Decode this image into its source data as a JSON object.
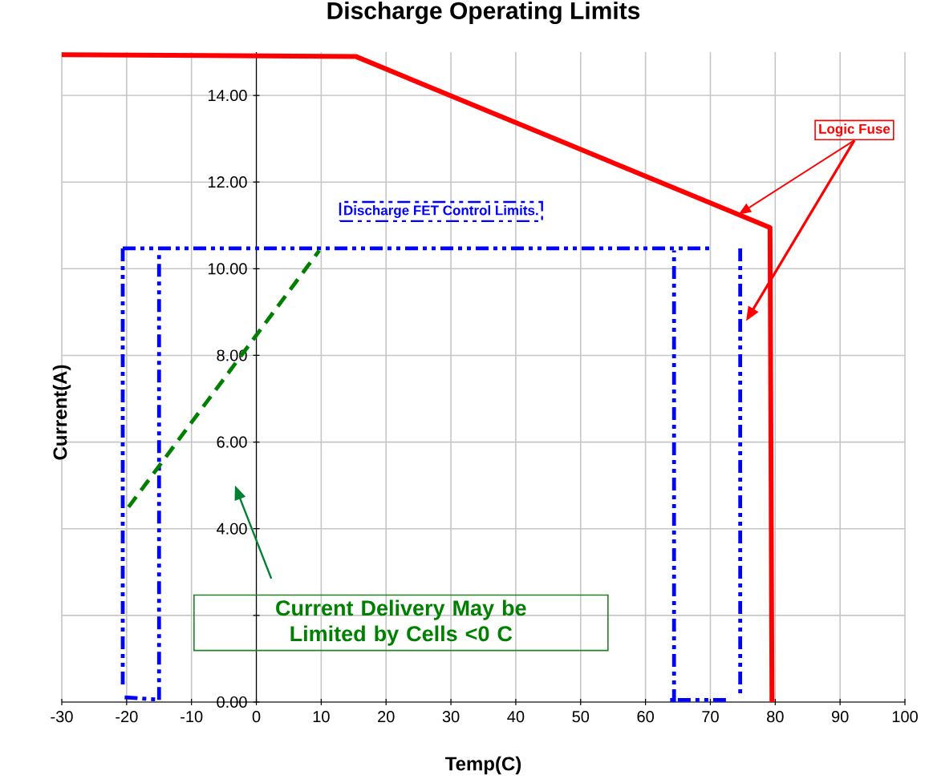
{
  "chart_data": {
    "type": "line",
    "title": "Discharge Operating Limits",
    "xlabel": "Temp(C)",
    "ylabel": "Current(A)",
    "xlim": [
      -30,
      100
    ],
    "ylim": [
      0,
      15
    ],
    "xticks": [
      -30,
      -20,
      -10,
      0,
      10,
      20,
      30,
      40,
      50,
      60,
      70,
      80,
      90,
      100
    ],
    "yticks": [
      {
        "value": 0,
        "label": "0.00"
      },
      {
        "value": 2,
        "label": null
      },
      {
        "value": 4,
        "label": "4.00"
      },
      {
        "value": 6,
        "label": "6.00"
      },
      {
        "value": 8,
        "label": "8.00"
      },
      {
        "value": 10,
        "label": "10.00"
      },
      {
        "value": 12,
        "label": "12.00"
      },
      {
        "value": 14,
        "label": "14.00"
      }
    ],
    "grid": true,
    "marker": "none",
    "series": [
      {
        "color": "#ff0000",
        "line_style": "solid",
        "x": [
          -30,
          15.3,
          79.2,
          79.5
        ],
        "values": [
          14.94,
          14.9,
          10.95,
          0
        ]
      },
      {
        "name": "Discharge FET Control Limits.",
        "color": "#0000ff",
        "line_style": "dashdot",
        "x": [
          -20.6,
          70.3
        ],
        "values": [
          10.47,
          10.47
        ]
      },
      {
        "color": "#0000ff",
        "line_style": "dashdot",
        "x": [
          -20.6,
          -20.6
        ],
        "values": [
          10.47,
          0.3
        ]
      },
      {
        "color": "#0000ff",
        "line_style": "dashdot",
        "x": [
          -20.3,
          -15.5
        ],
        "values": [
          0.11,
          0.06
        ]
      },
      {
        "color": "#0000ff",
        "line_style": "dashdot",
        "x": [
          -15,
          -15
        ],
        "values": [
          0.05,
          10.42
        ]
      },
      {
        "color": "#0000ff",
        "line_style": "dashdot",
        "x": [
          64.4,
          64.4
        ],
        "values": [
          0,
          10.42
        ]
      },
      {
        "color": "#0000ff",
        "line_style": "dashdot",
        "x": [
          72.4,
          63.8
        ],
        "values": [
          0.05,
          0.05
        ]
      },
      {
        "color": "#0000ff",
        "line_style": "dashdot",
        "x": [
          74.6,
          74.6
        ],
        "values": [
          10.47,
          0.1
        ]
      },
      {
        "color": "#008000",
        "line_style": "dashed",
        "x": [
          -19.7,
          9.7
        ],
        "values": [
          4.5,
          10.42
        ]
      }
    ],
    "annotations": [
      "Logic Fuse",
      "Current Delivery May be Limited by Cells <0  C"
    ]
  }
}
